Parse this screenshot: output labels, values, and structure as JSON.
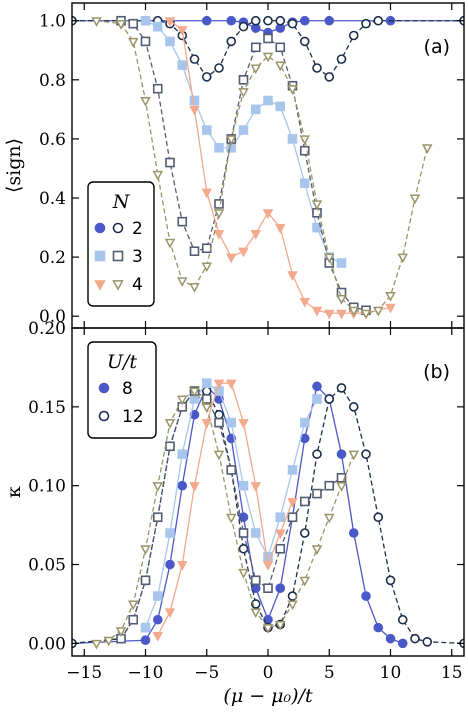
{
  "chart_data": [
    {
      "panel": "a",
      "type": "line",
      "panel_tag": "(a)",
      "ylabel": "⟨sign⟩",
      "xlabel": "",
      "xlim": [
        -16,
        16
      ],
      "ylim": [
        -0.04,
        1.06
      ],
      "xticks": [
        -15,
        -10,
        -5,
        0,
        5,
        10,
        15
      ],
      "yticks": [
        0.0,
        0.2,
        0.4,
        0.6,
        0.8,
        1.0
      ],
      "ytick_labels": [
        "0.0",
        "0.2",
        "0.4",
        "0.6",
        "0.8",
        "1.0"
      ],
      "legend": {
        "title": "N",
        "position": "lower-left",
        "entries": [
          {
            "label": "2",
            "marker": "circle",
            "colors": [
              "#4a58c8",
              "#1c2e4a"
            ]
          },
          {
            "label": "3",
            "marker": "square",
            "colors": [
              "#a8c6ec",
              "#525c72"
            ]
          },
          {
            "label": "4",
            "marker": "triangle",
            "colors": [
              "#f2a98c",
              "#9a9468"
            ]
          }
        ]
      },
      "series": [
        {
          "name": "N=2, U/t=8",
          "color": "#4a58c8",
          "marker": "circle",
          "fill": true,
          "x": [
            -16,
            -10,
            -5,
            -3,
            -2,
            -1,
            0,
            1,
            2,
            3,
            5,
            10,
            16
          ],
          "y": [
            1.0,
            1.0,
            1.0,
            1.0,
            0.995,
            0.975,
            0.96,
            0.975,
            0.995,
            1.0,
            1.0,
            1.0,
            1.0
          ]
        },
        {
          "name": "N=2, U/t=12",
          "color": "#1c2e4a",
          "marker": "circle",
          "fill": false,
          "x": [
            -16,
            -9,
            -8,
            -7,
            -6,
            -5,
            -4,
            -3,
            -2,
            -1,
            0,
            1,
            2,
            3,
            4,
            5,
            6,
            7,
            8,
            9,
            16
          ],
          "y": [
            1.0,
            1.0,
            0.99,
            0.95,
            0.87,
            0.81,
            0.84,
            0.93,
            0.98,
            1.0,
            1.0,
            1.0,
            0.99,
            0.93,
            0.84,
            0.81,
            0.87,
            0.95,
            0.99,
            1.0,
            1.0
          ]
        },
        {
          "name": "N=3, U/t=8",
          "color": "#a8c6ec",
          "marker": "square",
          "fill": true,
          "x": [
            -10,
            -9,
            -8,
            -7,
            -6,
            -5,
            -4,
            -3,
            -2,
            -1,
            0,
            1,
            2,
            3,
            4,
            5,
            6
          ],
          "y": [
            1.0,
            0.98,
            0.93,
            0.85,
            0.73,
            0.63,
            0.57,
            0.57,
            0.63,
            0.7,
            0.73,
            0.71,
            0.6,
            0.45,
            0.3,
            0.2,
            0.18
          ]
        },
        {
          "name": "N=3, U/t=12",
          "color": "#525c72",
          "marker": "square",
          "fill": false,
          "x": [
            -12,
            -11,
            -10,
            -9,
            -8,
            -7,
            -6,
            -5,
            -4,
            -3,
            -2,
            -1,
            0,
            1,
            2,
            3,
            4,
            5,
            6,
            7,
            8
          ],
          "y": [
            1.0,
            0.99,
            0.93,
            0.77,
            0.52,
            0.32,
            0.22,
            0.23,
            0.38,
            0.6,
            0.8,
            0.91,
            0.94,
            0.91,
            0.78,
            0.56,
            0.35,
            0.18,
            0.08,
            0.03,
            0.02
          ]
        },
        {
          "name": "N=4, U/t=8",
          "color": "#f2a98c",
          "marker": "triangle",
          "fill": true,
          "x": [
            -8,
            -7,
            -6,
            -5,
            -4,
            -3,
            -2,
            -1,
            0,
            1,
            2,
            3,
            4,
            5,
            6,
            7,
            8,
            9,
            10
          ],
          "y": [
            1.0,
            0.97,
            0.7,
            0.42,
            0.28,
            0.2,
            0.22,
            0.28,
            0.35,
            0.3,
            0.14,
            0.05,
            0.02,
            0.01,
            0.01,
            0.01,
            0.01,
            0.02,
            0.03
          ]
        },
        {
          "name": "N=4, U/t=12",
          "color": "#9a9468",
          "marker": "triangle",
          "fill": false,
          "x": [
            -14,
            -12,
            -11,
            -10,
            -9,
            -8,
            -7,
            -6,
            -5,
            -4,
            -3,
            -2,
            -1,
            0,
            1,
            2,
            3,
            4,
            5,
            6,
            7,
            8,
            9,
            10,
            11,
            12,
            13
          ],
          "y": [
            1.0,
            0.99,
            0.93,
            0.73,
            0.48,
            0.25,
            0.12,
            0.1,
            0.17,
            0.35,
            0.6,
            0.76,
            0.84,
            0.88,
            0.85,
            0.77,
            0.6,
            0.38,
            0.2,
            0.06,
            0.02,
            0.01,
            0.02,
            0.07,
            0.2,
            0.4,
            0.57
          ]
        }
      ]
    },
    {
      "panel": "b",
      "type": "line",
      "panel_tag": "(b)",
      "ylabel": "κ",
      "xlabel": "(μ − μ₀)/t",
      "xlim": [
        -16,
        16
      ],
      "ylim": [
        -0.008,
        0.2
      ],
      "xticks": [
        -15,
        -10,
        -5,
        0,
        5,
        10,
        15
      ],
      "xtick_labels": [
        "−15",
        "−10",
        "−5",
        "0",
        "5",
        "10",
        "15"
      ],
      "yticks": [
        0.0,
        0.05,
        0.1,
        0.15,
        0.2
      ],
      "ytick_labels": [
        "0.00",
        "0.05",
        "0.10",
        "0.15",
        "0.20"
      ],
      "legend": {
        "title": "U/t",
        "position": "upper-left",
        "entries": [
          {
            "label": "8",
            "marker": "circle",
            "colors": [
              "#4a58c8"
            ]
          },
          {
            "label": "12",
            "marker": "circle",
            "colors": [
              "#1c2e4a"
            ]
          }
        ]
      },
      "series": [
        {
          "name": "N=2, U/t=8",
          "color": "#4a58c8",
          "marker": "circle",
          "fill": true,
          "x": [
            -16,
            -10,
            -9,
            -8,
            -7,
            -6,
            -5,
            -4,
            -3,
            -2,
            -1,
            0,
            1,
            2,
            3,
            4,
            5,
            6,
            7,
            8,
            9,
            10,
            11
          ],
          "y": [
            0.0,
            0.002,
            0.015,
            0.05,
            0.1,
            0.145,
            0.163,
            0.155,
            0.13,
            0.08,
            0.035,
            0.015,
            0.035,
            0.08,
            0.13,
            0.163,
            0.155,
            0.12,
            0.07,
            0.03,
            0.01,
            0.003,
            0.0
          ]
        },
        {
          "name": "N=2, U/t=12",
          "color": "#1c2e4a",
          "marker": "circle",
          "fill": false,
          "x": [
            -16,
            -12,
            -11,
            -10,
            -9,
            -8,
            -7,
            -6,
            -5,
            -4,
            -3,
            -2,
            -1,
            0,
            1,
            2,
            3,
            4,
            5,
            6,
            7,
            8,
            9,
            10,
            11,
            12,
            13,
            16
          ],
          "y": [
            0.0,
            0.003,
            0.015,
            0.04,
            0.08,
            0.125,
            0.15,
            0.16,
            0.16,
            0.145,
            0.11,
            0.06,
            0.025,
            0.01,
            0.012,
            0.03,
            0.07,
            0.12,
            0.155,
            0.162,
            0.15,
            0.12,
            0.08,
            0.04,
            0.015,
            0.003,
            0.001,
            0.0
          ]
        },
        {
          "name": "N=3, U/t=8",
          "color": "#a8c6ec",
          "marker": "square",
          "fill": true,
          "x": [
            -10,
            -9,
            -8,
            -7,
            -6,
            -5,
            -4,
            -3,
            -2,
            -1,
            0,
            1,
            2,
            3,
            4
          ],
          "y": [
            0.01,
            0.03,
            0.07,
            0.12,
            0.155,
            0.165,
            0.16,
            0.14,
            0.1,
            0.07,
            0.055,
            0.08,
            0.11,
            0.14,
            0.155
          ]
        },
        {
          "name": "N=3, U/t=12",
          "color": "#525c72",
          "marker": "square",
          "fill": false,
          "x": [
            -12,
            -11,
            -10,
            -9,
            -8,
            -7,
            -6,
            -5,
            -4,
            -3,
            -2,
            -1,
            0,
            1,
            2,
            3,
            4,
            5,
            6
          ],
          "y": [
            0.003,
            0.015,
            0.04,
            0.08,
            0.125,
            0.15,
            0.16,
            0.155,
            0.14,
            0.11,
            0.07,
            0.04,
            0.035,
            0.06,
            0.08,
            0.09,
            0.095,
            0.1,
            0.105
          ]
        },
        {
          "name": "N=4, U/t=8",
          "color": "#f2a98c",
          "marker": "triangle",
          "fill": true,
          "x": [
            -9,
            -8,
            -7,
            -6,
            -5,
            -4,
            -3,
            -2,
            -1,
            0,
            1,
            2
          ],
          "y": [
            0.005,
            0.02,
            0.05,
            0.1,
            0.14,
            0.165,
            0.165,
            0.14,
            0.1,
            0.05,
            0.07,
            0.09
          ]
        },
        {
          "name": "N=4, U/t=12",
          "color": "#9a9468",
          "marker": "triangle",
          "fill": false,
          "x": [
            -14,
            -13,
            -12,
            -11,
            -10,
            -9,
            -8,
            -7,
            -6,
            -5,
            -4,
            -3,
            -2,
            -1,
            0,
            1,
            2,
            3,
            4,
            5,
            6,
            7
          ],
          "y": [
            0.0,
            0.002,
            0.008,
            0.025,
            0.06,
            0.1,
            0.14,
            0.155,
            0.16,
            0.15,
            0.12,
            0.08,
            0.045,
            0.02,
            0.01,
            0.012,
            0.025,
            0.04,
            0.06,
            0.08,
            0.1,
            0.12
          ]
        }
      ]
    }
  ]
}
